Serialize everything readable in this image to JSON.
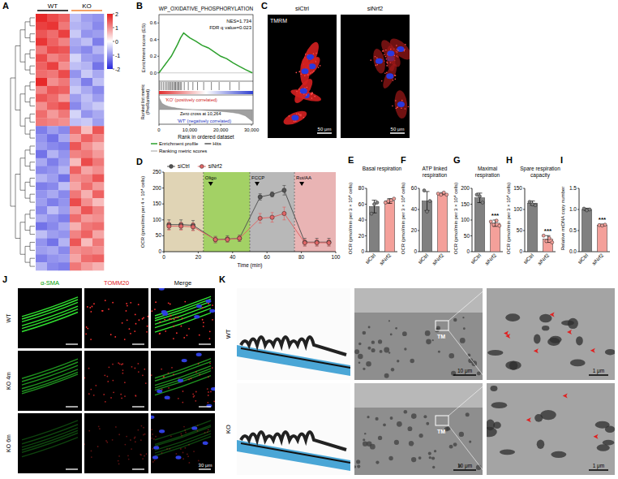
{
  "chart_data": [
    {
      "panel": "A",
      "type": "heatmap",
      "groups": [
        "WT",
        "KO"
      ],
      "color_range": [
        -2,
        2
      ],
      "color_ticks": [
        2,
        1,
        0,
        -1,
        -2
      ],
      "cells": [
        [
          1.9,
          1.6,
          1.4,
          -0.6,
          -0.9,
          -1.0
        ],
        [
          1.7,
          1.8,
          1.2,
          -0.7,
          -0.8,
          -1.1
        ],
        [
          1.5,
          1.3,
          1.7,
          -0.5,
          -1.0,
          -0.9
        ],
        [
          1.8,
          1.4,
          1.1,
          -0.8,
          -0.6,
          -1.2
        ],
        [
          1.2,
          1.6,
          1.5,
          -0.9,
          -1.1,
          -0.7
        ],
        [
          1.6,
          1.1,
          1.3,
          -0.4,
          -0.9,
          -1.0
        ],
        [
          1.4,
          1.7,
          1.0,
          -0.6,
          -0.7,
          -1.3
        ],
        [
          1.3,
          1.2,
          1.6,
          -1.0,
          -0.5,
          -0.8
        ],
        [
          1.9,
          1.0,
          1.2,
          -0.7,
          -1.2,
          -0.6
        ],
        [
          1.1,
          1.5,
          1.4,
          -0.5,
          -0.8,
          -1.1
        ],
        [
          1.5,
          1.3,
          0.9,
          -0.9,
          -0.6,
          -0.9
        ],
        [
          1.0,
          1.4,
          1.6,
          -1.1,
          -0.7,
          -0.5
        ],
        [
          1.3,
          0.9,
          1.2,
          -0.4,
          -1.0,
          -0.8
        ],
        [
          1.2,
          1.1,
          1.0,
          -0.6,
          -0.5,
          -0.9
        ],
        [
          -1.2,
          -0.9,
          -1.1,
          1.3,
          0.6,
          1.5
        ],
        [
          -1.0,
          -1.3,
          -0.8,
          0.9,
          1.4,
          1.1
        ],
        [
          -0.9,
          -1.1,
          -1.2,
          1.5,
          1.0,
          0.7
        ],
        [
          -1.3,
          -0.7,
          -1.0,
          1.1,
          1.2,
          0.9
        ],
        [
          -0.8,
          -1.2,
          -0.9,
          0.6,
          1.6,
          1.2
        ],
        [
          -1.1,
          -1.0,
          -0.7,
          1.4,
          0.8,
          1.0
        ],
        [
          -0.7,
          -0.9,
          -1.3,
          1.0,
          1.1,
          1.5
        ],
        [
          -1.2,
          -1.1,
          -0.6,
          0.8,
          1.3,
          0.9
        ],
        [
          -1.0,
          -0.8,
          -1.1,
          1.2,
          0.7,
          1.4
        ],
        [
          -0.9,
          -1.2,
          -1.0,
          1.6,
          1.0,
          0.6
        ],
        [
          -1.1,
          -0.6,
          -0.9,
          0.9,
          1.5,
          1.1
        ],
        [
          -0.8,
          -1.0,
          -1.2,
          1.3,
          0.9,
          1.0
        ],
        [
          -1.3,
          -1.1,
          -0.8,
          0.7,
          1.2,
          1.3
        ],
        [
          -0.6,
          -0.9,
          -1.0,
          1.1,
          1.4,
          0.8
        ],
        [
          -1.0,
          -1.3,
          -0.7,
          1.5,
          0.6,
          1.2
        ],
        [
          -0.9,
          -0.8,
          -1.1,
          1.0,
          1.1,
          1.0
        ],
        [
          -1.2,
          -1.0,
          -0.9,
          0.8,
          1.3,
          1.4
        ],
        [
          -0.7,
          -1.1,
          -1.2,
          1.2,
          0.9,
          0.7
        ]
      ]
    },
    {
      "panel": "B",
      "type": "gsea",
      "title": "WP_OXIDATIVE_PHOSPHORYLATION",
      "annotations": [
        "NES=1.734",
        "FDR q value=0.023"
      ],
      "y_label": "Enrichment score (ES)",
      "metric_label": "Ranked list metric (PreRanked)",
      "x_label": "Rank in ordered dataset",
      "x": [
        0,
        1000,
        2000,
        3000,
        4000,
        5000,
        6000,
        7000,
        8000,
        9000,
        10000,
        12000,
        14000,
        16000,
        18000,
        20000,
        22000,
        24000,
        26000,
        28000,
        30284
      ],
      "values": [
        0,
        0.05,
        0.1,
        0.15,
        0.2,
        0.27,
        0.34,
        0.42,
        0.48,
        0.45,
        0.42,
        0.38,
        0.33,
        0.3,
        0.25,
        0.2,
        0.17,
        0.12,
        0.08,
        0.04,
        0
      ],
      "metric": [
        0.9,
        0.45,
        0.32,
        0.24,
        0.18,
        0.14,
        0.1,
        0.07,
        0.05,
        0.03,
        0.01,
        -0.02,
        -0.05,
        -0.08,
        -0.1,
        -0.13,
        -0.17,
        -0.22,
        -0.3,
        -0.45,
        -0.85
      ],
      "metric_lim": [
        -1,
        1
      ],
      "hits": [
        300,
        900,
        1500,
        2100,
        2600,
        3100,
        3500,
        3900,
        4300,
        4700,
        5100,
        5400,
        5800,
        6200,
        6500,
        6900,
        7300,
        8200,
        9500,
        11000,
        12500,
        14500,
        17000,
        19500,
        23000,
        26000
      ],
      "metric_annotations": [
        "'KO' (positively correlated)",
        "Zero cross at 10,264",
        "'WT' (negatively correlated)"
      ],
      "legend_entries": [
        "Enrichment profile",
        "Hits",
        "Ranking metric scores"
      ],
      "xlim": [
        0,
        30500
      ],
      "xticks": [
        0,
        {
          "value": 10000,
          "label": "10,000"
        },
        {
          "value": 20000,
          "label": "20,000"
        },
        {
          "value": 30000,
          "label": "30,000"
        }
      ],
      "ylim": [
        -0.1,
        0.7
      ],
      "yticks": [
        {
          "value": 0,
          "label": "0.0"
        },
        {
          "value": 0.2,
          "label": "0.2"
        },
        {
          "value": 0.4,
          "label": "0.4"
        },
        {
          "value": 0.6,
          "label": "0.6"
        }
      ]
    },
    {
      "panel": "D",
      "type": "line",
      "x_label": "Time (min)",
      "y_label": "OCR (pmol/min per 4 × 10⁴ cells)",
      "legend": "top-left",
      "grid": false,
      "x": [
        3,
        10,
        17,
        30,
        37,
        44,
        56,
        63,
        70,
        82,
        89,
        96
      ],
      "series": [
        {
          "name": "siCtrl",
          "color": "#555555",
          "marker": "circle",
          "values": [
            85,
            85,
            83,
            38,
            40,
            42,
            172,
            180,
            193,
            30,
            30,
            30
          ],
          "errors": [
            15,
            15,
            15,
            10,
            10,
            10,
            10,
            8,
            15,
            12,
            12,
            12
          ]
        },
        {
          "name": "siNrf2",
          "color": "#e06666",
          "marker": "circle",
          "values": [
            80,
            80,
            78,
            38,
            38,
            42,
            105,
            108,
            120,
            28,
            28,
            28
          ],
          "errors": [
            12,
            12,
            12,
            8,
            8,
            8,
            15,
            15,
            20,
            10,
            10,
            10
          ]
        }
      ],
      "injections": [
        {
          "label": "Oligo",
          "x": 23
        },
        {
          "label": "FCCP",
          "x": 50
        },
        {
          "label": "Rot/AA",
          "x": 76
        }
      ],
      "xlim": [
        0,
        100
      ],
      "xticks": [
        0,
        20,
        40,
        60,
        80,
        100
      ],
      "ylim": [
        0,
        250
      ],
      "yticks": [
        0,
        50,
        100,
        150,
        200,
        250
      ]
    },
    {
      "panel": "E",
      "type": "bar",
      "title": "Basal respiration",
      "y_label": "OCR (pmol/min per 3 × 10⁴ cells)",
      "categories": [
        "siCtrl",
        "siNrf2"
      ],
      "values": [
        57,
        64
      ],
      "errors": [
        8,
        3
      ],
      "points": [
        [
          48,
          60,
          62
        ],
        [
          62,
          64,
          65,
          67
        ]
      ],
      "colors": [
        "#808080",
        "#f4a09a"
      ],
      "significance": [
        null,
        null
      ],
      "ylim": [
        0,
        80
      ],
      "yticks": [
        0,
        20,
        40,
        60,
        80
      ]
    },
    {
      "panel": "F",
      "type": "bar",
      "title": "ATP linked respiration",
      "y_label": "OCR (pmol/min per 3 × 10⁴ cells)",
      "categories": [
        "siCtrl",
        "siNrf2"
      ],
      "values": [
        48,
        55
      ],
      "errors": [
        9,
        1
      ],
      "points": [
        [
          58,
          38,
          48
        ],
        [
          55,
          54,
          56,
          54
        ]
      ],
      "colors": [
        "#808080",
        "#f4a09a"
      ],
      "significance": [
        null,
        null
      ],
      "ylim": [
        0,
        60
      ],
      "yticks": [
        0,
        20,
        40,
        60
      ]
    },
    {
      "panel": "G",
      "type": "bar",
      "title": "Maximal respiration",
      "y_label": "OCR (pmol/min per 3 × 10⁴ cells)",
      "categories": [
        "siCtrl",
        "siNrf2"
      ],
      "values": [
        170,
        90
      ],
      "errors": [
        15,
        10
      ],
      "points": [
        [
          180,
          175,
          155
        ],
        [
          95,
          85,
          98,
          82
        ]
      ],
      "colors": [
        "#808080",
        "#f4a09a"
      ],
      "significance": [
        null,
        "***"
      ],
      "ylim": [
        0,
        200
      ],
      "yticks": [
        0,
        50,
        100,
        150,
        200
      ]
    },
    {
      "panel": "H",
      "type": "bar",
      "title": "Spare respiration capacity",
      "y_label": "OCR (pmol/min per 3 × 10⁴ cells)",
      "categories": [
        "siCtrl",
        "siNrf2"
      ],
      "values": [
        115,
        30
      ],
      "errors": [
        5,
        8
      ],
      "points": [
        [
          118,
          112,
          110
        ],
        [
          38,
          25,
          32,
          22
        ]
      ],
      "colors": [
        "#808080",
        "#f4a09a"
      ],
      "significance": [
        null,
        "***"
      ],
      "ylim": [
        0,
        150
      ],
      "yticks": [
        0,
        50,
        100,
        150
      ]
    },
    {
      "panel": "I",
      "type": "bar",
      "y_label": "Relative mtDNA copy number",
      "categories": [
        "siCtrl",
        "siNrf2"
      ],
      "values": [
        1.0,
        0.63
      ],
      "errors": [
        0.03,
        0.02
      ],
      "points": [
        [
          1.02,
          0.98,
          1.0
        ],
        [
          0.63,
          0.62,
          0.64
        ]
      ],
      "colors": [
        "#808080",
        "#f4a09a"
      ],
      "significance": [
        null,
        "***"
      ],
      "ylim": [
        0,
        1.5
      ],
      "yticks": [
        {
          "value": 0,
          "label": "0.0"
        },
        0.5,
        {
          "value": 1,
          "label": "1.0"
        },
        1.5
      ]
    }
  ],
  "images": [
    {
      "panel": "C",
      "stain": "TMRM",
      "conditions": [
        "siCtrl",
        "siNrf2"
      ],
      "scale_bar": "50 μm"
    },
    {
      "panel": "J",
      "columns": [
        "α-SMA",
        "TOMM20",
        "Merge"
      ],
      "rows": [
        "WT",
        "KO 4m",
        "KO 6m"
      ],
      "scale_bar": "30 μm"
    },
    {
      "panel": "K",
      "rows": [
        "WT",
        "KO"
      ],
      "region": "TM",
      "scale_bars": [
        "10 μm",
        "1 μm"
      ]
    }
  ]
}
